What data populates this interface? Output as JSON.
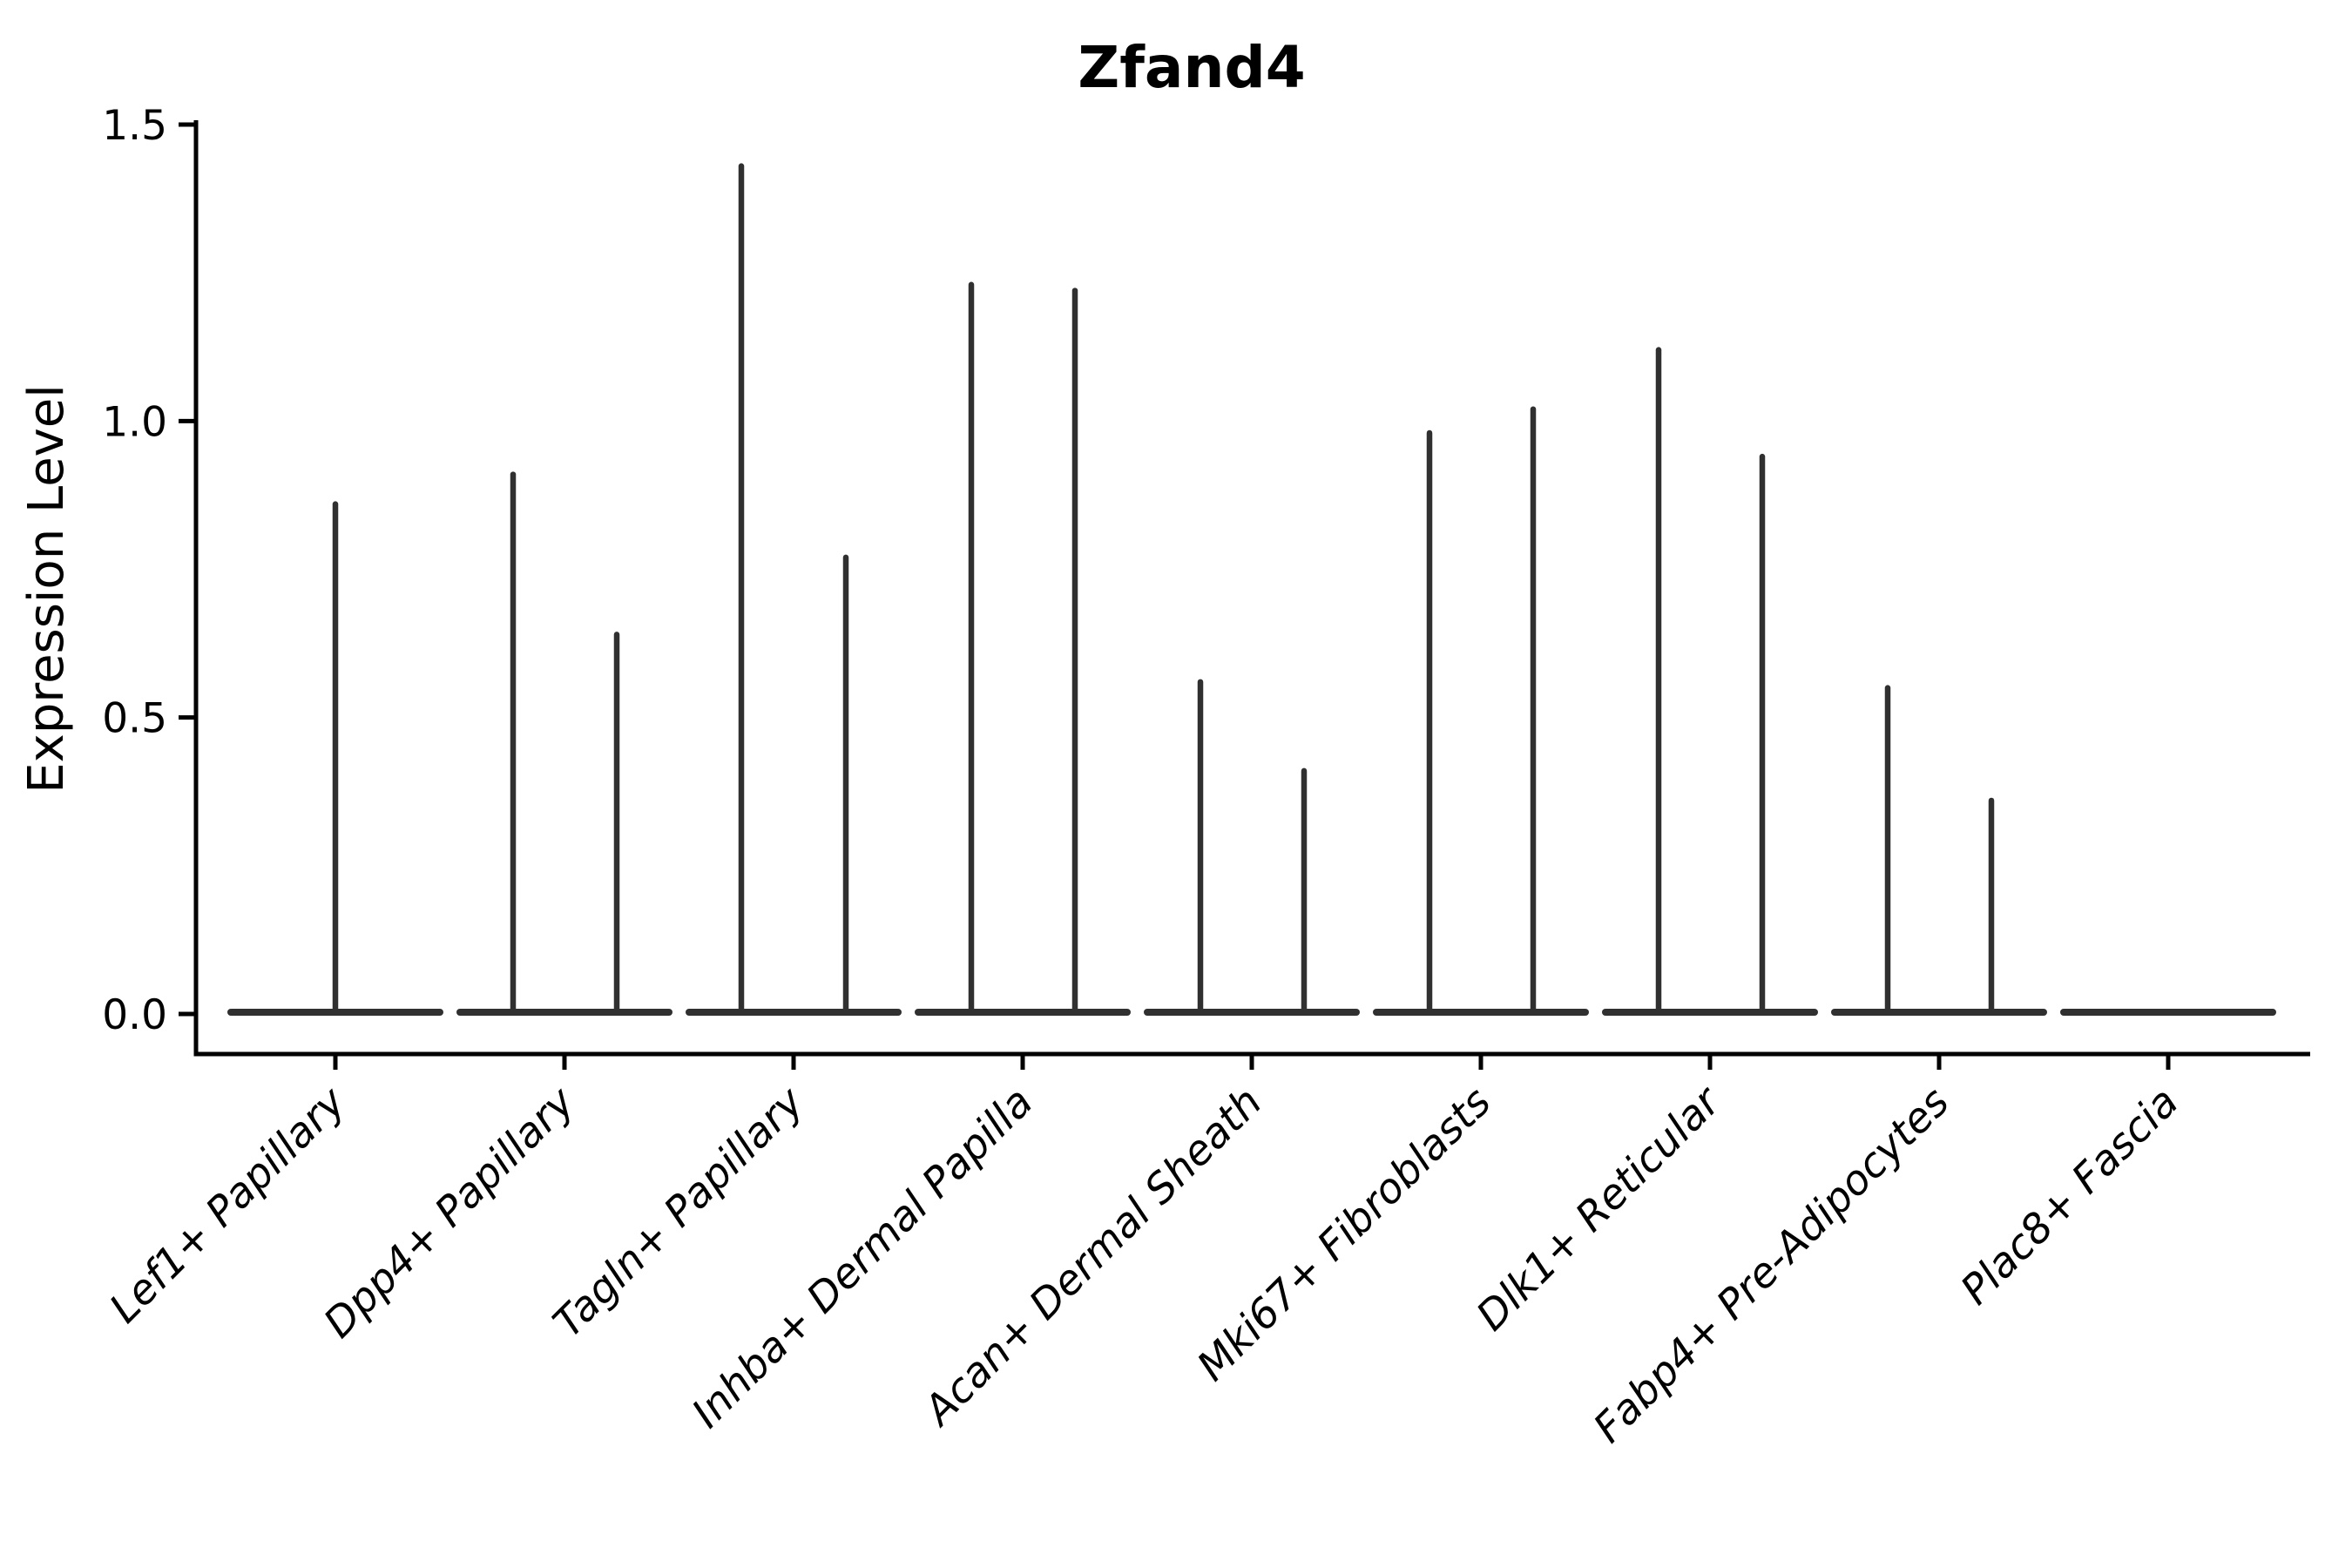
{
  "chart_data": {
    "type": "violin",
    "title": "Zfand4",
    "ylabel": "Expression Level",
    "xlabel": "",
    "yticks": [
      0.0,
      0.5,
      1.0,
      1.5
    ],
    "ylim": [
      0,
      1.5
    ],
    "grid": false,
    "legend": "none",
    "line_color": "#303030",
    "categories": [
      "Lef1+ Papillary",
      "Dpp4+ Papillary",
      "Tagln+ Papillary",
      "Inhba+ Dermal Papilla",
      "Acan+ Dermal Sheath",
      "Mki67+ Fibroblasts",
      "Dlk1+ Reticular",
      "Fabp4+ Pre-Adipocytes",
      "Plac8+ Fascia"
    ],
    "violins": [
      {
        "category": "Lef1+ Papillary",
        "baseline_value": 0.0,
        "spikes": [
          {
            "offset": 0,
            "max": 0.86
          }
        ]
      },
      {
        "category": "Dpp4+ Papillary",
        "baseline_value": 0.0,
        "spikes": [
          {
            "offset": -59,
            "max": 0.91
          },
          {
            "offset": 60,
            "max": 0.64
          }
        ]
      },
      {
        "category": "Tagln+ Papillary",
        "baseline_value": 0.0,
        "spikes": [
          {
            "offset": -60,
            "max": 1.43
          },
          {
            "offset": 60,
            "max": 0.77
          }
        ]
      },
      {
        "category": "Inhba+ Dermal Papilla",
        "baseline_value": 0.0,
        "spikes": [
          {
            "offset": -59,
            "max": 1.23
          },
          {
            "offset": 60,
            "max": 1.22
          }
        ]
      },
      {
        "category": "Acan+ Dermal Sheath",
        "baseline_value": 0.0,
        "spikes": [
          {
            "offset": -59,
            "max": 0.56
          },
          {
            "offset": 60,
            "max": 0.41
          }
        ]
      },
      {
        "category": "Mki67+ Fibroblasts",
        "baseline_value": 0.0,
        "spikes": [
          {
            "offset": -59,
            "max": 0.98
          },
          {
            "offset": 60,
            "max": 1.02
          }
        ]
      },
      {
        "category": "Dlk1+ Reticular",
        "baseline_value": 0.0,
        "spikes": [
          {
            "offset": -59,
            "max": 1.12
          },
          {
            "offset": 60,
            "max": 0.94
          }
        ]
      },
      {
        "category": "Fabp4+ Pre-Adipocytes",
        "baseline_value": 0.0,
        "spikes": [
          {
            "offset": -59,
            "max": 0.55
          },
          {
            "offset": 60,
            "max": 0.36
          }
        ]
      },
      {
        "category": "Plac8+ Fascia",
        "baseline_value": 0.0,
        "spikes": []
      }
    ]
  }
}
